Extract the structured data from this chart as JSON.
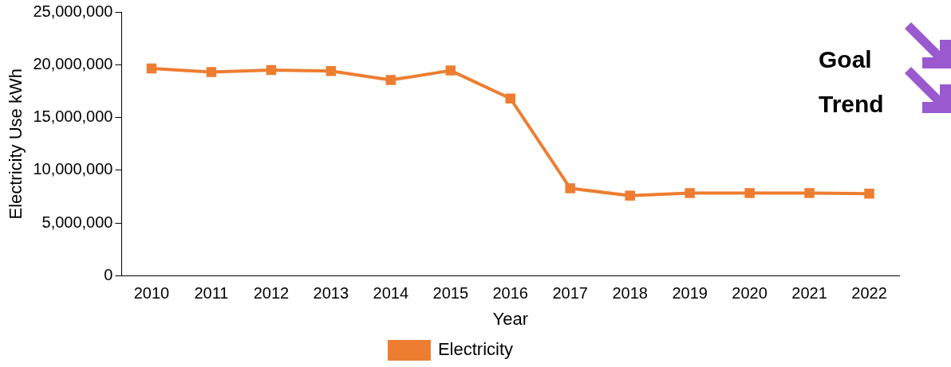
{
  "chart_data": {
    "type": "line",
    "xlabel": "Year",
    "ylabel": "Electricity Use kWh",
    "categories": [
      "2010",
      "2011",
      "2012",
      "2013",
      "2014",
      "2015",
      "2016",
      "2017",
      "2018",
      "2019",
      "2020",
      "2021",
      "2022"
    ],
    "series": [
      {
        "name": "Electricity",
        "color": "#ed7d31",
        "values": [
          19650000,
          19300000,
          19500000,
          19400000,
          18550000,
          19450000,
          16800000,
          8300000,
          7600000,
          7850000,
          7850000,
          7850000,
          7800000
        ]
      }
    ],
    "ylim": [
      0,
      25000000
    ],
    "yticks": [
      0,
      {
        "value": 5000000,
        "label": "5,000,000"
      },
      {
        "value": 10000000,
        "label": "10,000,000"
      },
      {
        "value": 15000000,
        "label": "15,000,000"
      },
      {
        "value": 20000000,
        "label": "20,000,000"
      },
      {
        "value": 25000000,
        "label": "25,000,000"
      }
    ],
    "grid": false,
    "legend": "bottom",
    "marker": "square",
    "line_style": "solid",
    "annotations": [
      "Goal",
      "Trend"
    ]
  }
}
